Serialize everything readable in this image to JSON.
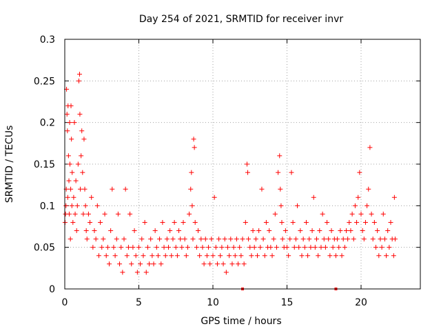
{
  "chart_data": {
    "type": "scatter",
    "title": "Day 254 of 2021, SRMTID for receiver invr",
    "xlabel": "GPS time / hours",
    "ylabel": "SRMTID / TECUs",
    "xlim": [
      0,
      24
    ],
    "ylim": [
      0,
      0.3
    ],
    "x_ticks": [
      0,
      5,
      10,
      15,
      20
    ],
    "x_tick_labels": [
      "0",
      "5",
      "10",
      "15",
      "20"
    ],
    "y_ticks": [
      0,
      0.05,
      0.1,
      0.15,
      0.2,
      0.25,
      0.3
    ],
    "y_tick_labels": [
      "0",
      "0.05",
      "0.1",
      "0.15",
      "0.2",
      "0.25",
      "0.3"
    ],
    "grid": true,
    "marker": "+",
    "marker_color": "#ff0000",
    "series": [
      {
        "name": "SRMTID",
        "points": [
          [
            0.02,
            0.08
          ],
          [
            0.05,
            0.09
          ],
          [
            0.08,
            0.1
          ],
          [
            0.1,
            0.12
          ],
          [
            0.12,
            0.24
          ],
          [
            0.15,
            0.21
          ],
          [
            0.18,
            0.19
          ],
          [
            0.2,
            0.11
          ],
          [
            0.22,
            0.22
          ],
          [
            0.25,
            0.16
          ],
          [
            0.28,
            0.13
          ],
          [
            0.3,
            0.09
          ],
          [
            0.33,
            0.2
          ],
          [
            0.35,
            0.15
          ],
          [
            0.38,
            0.06
          ],
          [
            0.4,
            0.12
          ],
          [
            0.42,
            0.22
          ],
          [
            0.45,
            0.18
          ],
          [
            0.48,
            0.1
          ],
          [
            0.5,
            0.14
          ],
          [
            0.55,
            0.08
          ],
          [
            0.6,
            0.11
          ],
          [
            0.65,
            0.2
          ],
          [
            0.7,
            0.09
          ],
          [
            0.75,
            0.13
          ],
          [
            0.8,
            0.07
          ],
          [
            0.85,
            0.1
          ],
          [
            0.9,
            0.15
          ],
          [
            0.95,
            0.25
          ],
          [
            1.0,
            0.258
          ],
          [
            1.02,
            0.21
          ],
          [
            1.05,
            0.12
          ],
          [
            1.1,
            0.16
          ],
          [
            1.15,
            0.19
          ],
          [
            1.2,
            0.14
          ],
          [
            1.25,
            0.09
          ],
          [
            1.3,
            0.18
          ],
          [
            1.35,
            0.12
          ],
          [
            1.4,
            0.1
          ],
          [
            1.45,
            0.07
          ],
          [
            1.5,
            0.06
          ],
          [
            1.6,
            0.09
          ],
          [
            1.7,
            0.08
          ],
          [
            1.8,
            0.11
          ],
          [
            1.9,
            0.05
          ],
          [
            2.0,
            0.07
          ],
          [
            2.1,
            0.06
          ],
          [
            2.2,
            0.1
          ],
          [
            2.3,
            0.04
          ],
          [
            2.4,
            0.08
          ],
          [
            2.5,
            0.05
          ],
          [
            2.6,
            0.06
          ],
          [
            2.7,
            0.09
          ],
          [
            2.8,
            0.04
          ],
          [
            2.9,
            0.05
          ],
          [
            3.0,
            0.03
          ],
          [
            3.1,
            0.07
          ],
          [
            3.2,
            0.12
          ],
          [
            3.3,
            0.05
          ],
          [
            3.4,
            0.04
          ],
          [
            3.5,
            0.06
          ],
          [
            3.6,
            0.09
          ],
          [
            3.7,
            0.03
          ],
          [
            3.8,
            0.05
          ],
          [
            3.9,
            0.02
          ],
          [
            4.0,
            0.06
          ],
          [
            4.1,
            0.12
          ],
          [
            4.2,
            0.04
          ],
          [
            4.3,
            0.05
          ],
          [
            4.4,
            0.09
          ],
          [
            4.5,
            0.03
          ],
          [
            4.6,
            0.05
          ],
          [
            4.7,
            0.07
          ],
          [
            4.8,
            0.04
          ],
          [
            4.9,
            0.02
          ],
          [
            5.0,
            0.05
          ],
          [
            5.1,
            0.03
          ],
          [
            5.2,
            0.06
          ],
          [
            5.3,
            0.04
          ],
          [
            5.4,
            0.08
          ],
          [
            5.5,
            0.02
          ],
          [
            5.6,
            0.05
          ],
          [
            5.7,
            0.03
          ],
          [
            5.8,
            0.06
          ],
          [
            5.9,
            0.04
          ],
          [
            6.0,
            0.03
          ],
          [
            6.1,
            0.07
          ],
          [
            6.2,
            0.05
          ],
          [
            6.3,
            0.04
          ],
          [
            6.4,
            0.06
          ],
          [
            6.5,
            0.03
          ],
          [
            6.6,
            0.08
          ],
          [
            6.7,
            0.05
          ],
          [
            6.8,
            0.04
          ],
          [
            6.9,
            0.06
          ],
          [
            7.0,
            0.05
          ],
          [
            7.1,
            0.07
          ],
          [
            7.2,
            0.04
          ],
          [
            7.3,
            0.06
          ],
          [
            7.4,
            0.08
          ],
          [
            7.5,
            0.05
          ],
          [
            7.6,
            0.04
          ],
          [
            7.7,
            0.07
          ],
          [
            7.8,
            0.06
          ],
          [
            7.9,
            0.05
          ],
          [
            8.0,
            0.08
          ],
          [
            8.1,
            0.06
          ],
          [
            8.2,
            0.04
          ],
          [
            8.3,
            0.05
          ],
          [
            8.4,
            0.09
          ],
          [
            8.5,
            0.12
          ],
          [
            8.55,
            0.14
          ],
          [
            8.6,
            0.1
          ],
          [
            8.65,
            0.06
          ],
          [
            8.7,
            0.18
          ],
          [
            8.75,
            0.17
          ],
          [
            8.8,
            0.08
          ],
          [
            8.9,
            0.05
          ],
          [
            9.0,
            0.07
          ],
          [
            9.1,
            0.04
          ],
          [
            9.2,
            0.06
          ],
          [
            9.3,
            0.05
          ],
          [
            9.4,
            0.03
          ],
          [
            9.5,
            0.06
          ],
          [
            9.6,
            0.04
          ],
          [
            9.7,
            0.05
          ],
          [
            9.8,
            0.03
          ],
          [
            9.9,
            0.06
          ],
          [
            10.0,
            0.04
          ],
          [
            10.1,
            0.11
          ],
          [
            10.2,
            0.05
          ],
          [
            10.3,
            0.03
          ],
          [
            10.4,
            0.06
          ],
          [
            10.5,
            0.04
          ],
          [
            10.6,
            0.05
          ],
          [
            10.7,
            0.03
          ],
          [
            10.8,
            0.06
          ],
          [
            10.9,
            0.02
          ],
          [
            11.0,
            0.05
          ],
          [
            11.1,
            0.04
          ],
          [
            11.2,
            0.06
          ],
          [
            11.3,
            0.03
          ],
          [
            11.4,
            0.05
          ],
          [
            11.5,
            0.04
          ],
          [
            11.6,
            0.06
          ],
          [
            11.7,
            0.03
          ],
          [
            11.8,
            0.05
          ],
          [
            11.9,
            0.04
          ],
          [
            12.0,
            0.06
          ],
          [
            12.1,
            0.03
          ],
          [
            12.2,
            0.08
          ],
          [
            12.3,
            0.15
          ],
          [
            12.35,
            0.14
          ],
          [
            12.4,
            0.06
          ],
          [
            12.5,
            0.05
          ],
          [
            12.6,
            0.04
          ],
          [
            12.7,
            0.07
          ],
          [
            12.8,
            0.05
          ],
          [
            12.9,
            0.06
          ],
          [
            13.0,
            0.04
          ],
          [
            13.1,
            0.07
          ],
          [
            13.2,
            0.05
          ],
          [
            13.3,
            0.12
          ],
          [
            13.4,
            0.06
          ],
          [
            13.5,
            0.04
          ],
          [
            13.6,
            0.08
          ],
          [
            13.7,
            0.05
          ],
          [
            13.8,
            0.07
          ],
          [
            13.9,
            0.05
          ],
          [
            14.0,
            0.04
          ],
          [
            14.1,
            0.06
          ],
          [
            14.2,
            0.09
          ],
          [
            14.3,
            0.05
          ],
          [
            14.4,
            0.14
          ],
          [
            14.5,
            0.16
          ],
          [
            14.55,
            0.12
          ],
          [
            14.6,
            0.1
          ],
          [
            14.65,
            0.08
          ],
          [
            14.7,
            0.06
          ],
          [
            14.8,
            0.05
          ],
          [
            14.9,
            0.07
          ],
          [
            15.0,
            0.05
          ],
          [
            15.1,
            0.04
          ],
          [
            15.2,
            0.06
          ],
          [
            15.3,
            0.14
          ],
          [
            15.4,
            0.08
          ],
          [
            15.5,
            0.05
          ],
          [
            15.6,
            0.06
          ],
          [
            15.7,
            0.1
          ],
          [
            15.8,
            0.05
          ],
          [
            15.9,
            0.07
          ],
          [
            16.0,
            0.04
          ],
          [
            16.1,
            0.06
          ],
          [
            16.2,
            0.05
          ],
          [
            16.3,
            0.08
          ],
          [
            16.4,
            0.04
          ],
          [
            16.5,
            0.06
          ],
          [
            16.6,
            0.05
          ],
          [
            16.7,
            0.07
          ],
          [
            16.8,
            0.11
          ],
          [
            16.9,
            0.05
          ],
          [
            17.0,
            0.06
          ],
          [
            17.1,
            0.04
          ],
          [
            17.2,
            0.07
          ],
          [
            17.3,
            0.05
          ],
          [
            17.4,
            0.09
          ],
          [
            17.5,
            0.06
          ],
          [
            17.6,
            0.05
          ],
          [
            17.7,
            0.08
          ],
          [
            17.8,
            0.06
          ],
          [
            17.9,
            0.04
          ],
          [
            18.0,
            0.07
          ],
          [
            18.1,
            0.05
          ],
          [
            18.2,
            0.06
          ],
          [
            18.3,
            0.04
          ],
          [
            18.4,
            0.06
          ],
          [
            18.5,
            0.05
          ],
          [
            18.6,
            0.07
          ],
          [
            18.7,
            0.04
          ],
          [
            18.8,
            0.06
          ],
          [
            18.9,
            0.05
          ],
          [
            19.0,
            0.07
          ],
          [
            19.1,
            0.06
          ],
          [
            19.2,
            0.08
          ],
          [
            19.3,
            0.07
          ],
          [
            19.4,
            0.09
          ],
          [
            19.5,
            0.06
          ],
          [
            19.6,
            0.1
          ],
          [
            19.7,
            0.08
          ],
          [
            19.8,
            0.11
          ],
          [
            19.9,
            0.14
          ],
          [
            20.0,
            0.09
          ],
          [
            20.1,
            0.07
          ],
          [
            20.2,
            0.06
          ],
          [
            20.3,
            0.08
          ],
          [
            20.4,
            0.1
          ],
          [
            20.5,
            0.12
          ],
          [
            20.6,
            0.17
          ],
          [
            20.7,
            0.09
          ],
          [
            20.8,
            0.06
          ],
          [
            20.9,
            0.08
          ],
          [
            21.0,
            0.05
          ],
          [
            21.1,
            0.07
          ],
          [
            21.2,
            0.04
          ],
          [
            21.3,
            0.06
          ],
          [
            21.4,
            0.05
          ],
          [
            21.5,
            0.09
          ],
          [
            21.6,
            0.06
          ],
          [
            21.7,
            0.04
          ],
          [
            21.8,
            0.07
          ],
          [
            21.9,
            0.05
          ],
          [
            22.0,
            0.08
          ],
          [
            22.1,
            0.06
          ],
          [
            22.2,
            0.04
          ],
          [
            22.25,
            0.11
          ],
          [
            22.3,
            0.06
          ]
        ]
      }
    ],
    "zero_marks": [
      12.0,
      18.3
    ]
  }
}
